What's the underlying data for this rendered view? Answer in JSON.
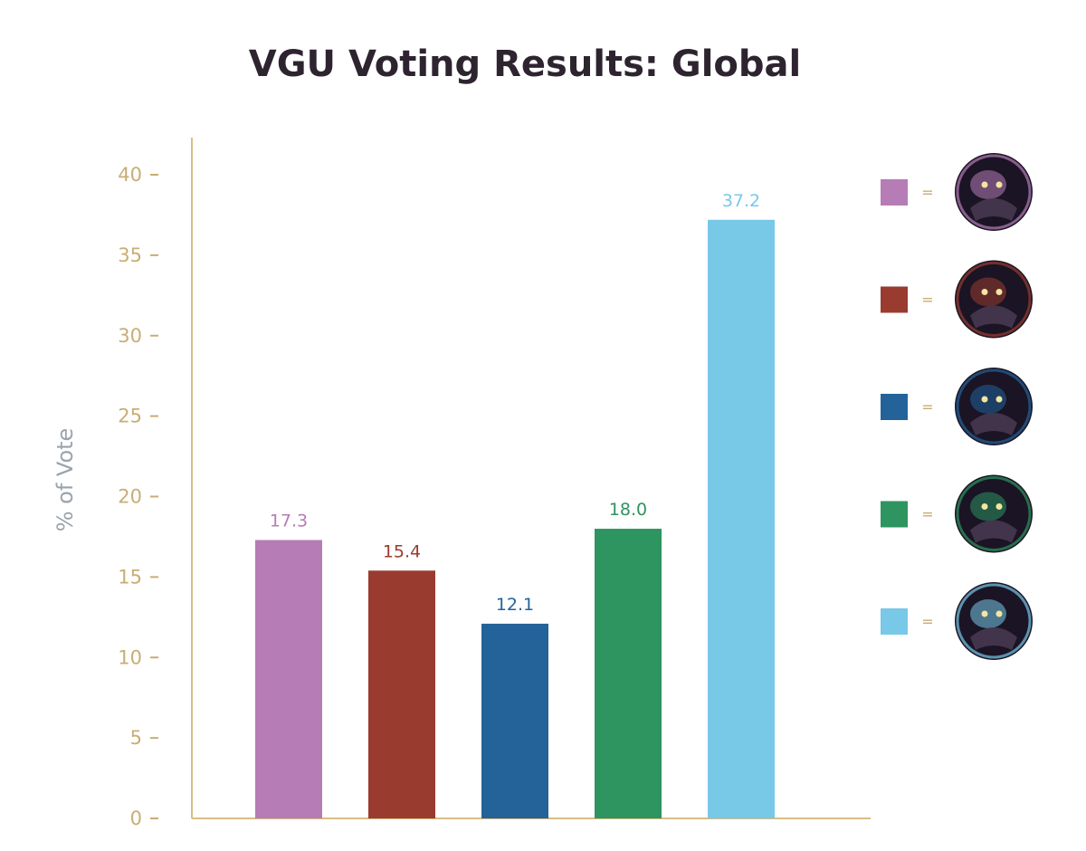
{
  "chart_data": {
    "type": "bar",
    "title": "VGU Voting Results: Global",
    "ylabel": "% of Vote",
    "xlabel": "",
    "ylim": [
      0,
      40
    ],
    "yticks": [
      0,
      5,
      10,
      15,
      20,
      25,
      30,
      35,
      40
    ],
    "grid": false,
    "legend_position": "right",
    "values": [
      17.3,
      15.4,
      12.1,
      18.0,
      37.2
    ],
    "value_labels": [
      "17.3",
      "15.4",
      "12.1",
      "18.0",
      "37.2"
    ],
    "colors": [
      "#b67cb6",
      "#9a3b30",
      "#23639a",
      "#2e9460",
      "#78c8e8"
    ],
    "legend": [
      {
        "color": "#b67cb6",
        "symbol": "=",
        "icon": "champion-portrait-icon"
      },
      {
        "color": "#9a3b30",
        "symbol": "=",
        "icon": "champion-portrait-icon"
      },
      {
        "color": "#23639a",
        "symbol": "=",
        "icon": "champion-portrait-icon"
      },
      {
        "color": "#2e9460",
        "symbol": "=",
        "icon": "champion-portrait-icon"
      },
      {
        "color": "#78c8e8",
        "symbol": "=",
        "icon": "champion-portrait-icon"
      }
    ]
  },
  "colors": {
    "axis": "#d9bd84",
    "tick_text": "#c9ad74",
    "ylabel_text": "#9aa4ac",
    "title_text": "#2e2430"
  }
}
